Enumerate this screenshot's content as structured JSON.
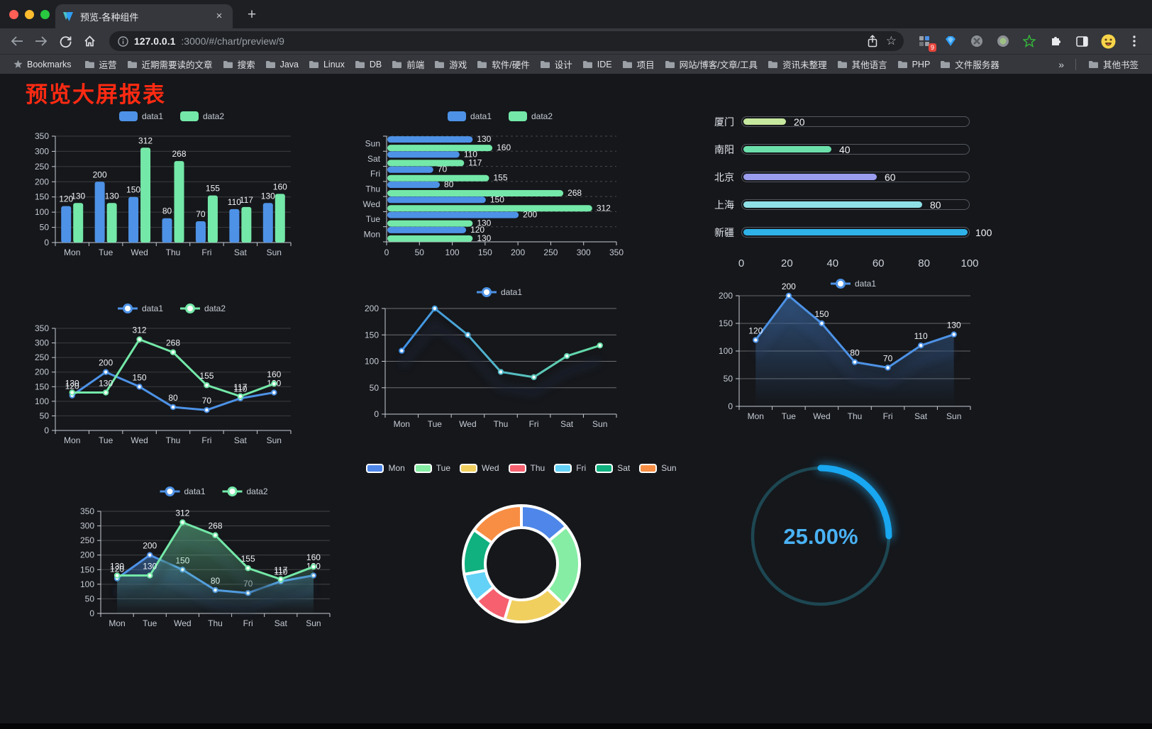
{
  "browser": {
    "tab_title": "预览-各种组件",
    "url_host": "127.0.0.1",
    "url_path": ":3000/#/chart/preview/9",
    "bookmarks_label": "Bookmarks",
    "bookmarks": [
      "运营",
      "近期需要读的文章",
      "搜索",
      "Java",
      "Linux",
      "DB",
      "前端",
      "游戏",
      "软件/硬件",
      "设计",
      "IDE",
      "项目",
      "网站/博客/文章/工具",
      "资讯未整理",
      "其他语言",
      "PHP",
      "文件服务器"
    ],
    "overflow_chevron": "»",
    "other_bookmarks": "其他书签",
    "extension_badge": "9"
  },
  "page": {
    "title": "预览大屏报表",
    "title_color": "#ff2a12"
  },
  "chart_data": [
    {
      "id": "bar-grouped",
      "type": "bar",
      "categories": [
        "Mon",
        "Tue",
        "Wed",
        "Thu",
        "Fri",
        "Sat",
        "Sun"
      ],
      "series": [
        {
          "name": "data1",
          "color": "#4d92e6",
          "values": [
            120,
            200,
            150,
            80,
            70,
            110,
            130
          ],
          "labels": true
        },
        {
          "name": "data2",
          "color": "#74e8a8",
          "values": [
            130,
            130,
            312,
            268,
            155,
            117,
            160
          ],
          "labels": true
        }
      ],
      "ylim": [
        0,
        350
      ],
      "ytick": 50,
      "grid_alpha": 0.16,
      "legend_position": "top"
    },
    {
      "id": "hbar-grouped",
      "type": "hbar",
      "categories": [
        "Mon",
        "Tue",
        "Wed",
        "Thu",
        "Fri",
        "Sat",
        "Sun"
      ],
      "series": [
        {
          "name": "data1",
          "color": "#4d92e6",
          "values": [
            120,
            200,
            150,
            80,
            70,
            110,
            130
          ],
          "labels": true
        },
        {
          "name": "data2",
          "color": "#74e8a8",
          "values": [
            130,
            130,
            312,
            268,
            155,
            117,
            160
          ],
          "labels": true
        }
      ],
      "xlim": [
        0,
        350
      ],
      "xtick": 50,
      "legend_position": "top"
    },
    {
      "id": "progress-cities",
      "type": "progress",
      "items": [
        {
          "label": "厦门",
          "value": 20,
          "color": "#c6e89e"
        },
        {
          "label": "南阳",
          "value": 40,
          "color": "#6ce0ab"
        },
        {
          "label": "北京",
          "value": 60,
          "color": "#9a9ced"
        },
        {
          "label": "上海",
          "value": 80,
          "color": "#8fdfe6"
        },
        {
          "label": "新疆",
          "value": 100,
          "color": "#2fb2e8"
        }
      ],
      "max": 100,
      "axis_ticks": [
        0,
        20,
        40,
        60,
        80,
        100
      ]
    },
    {
      "id": "line-two-series",
      "type": "line",
      "categories": [
        "Mon",
        "Tue",
        "Wed",
        "Thu",
        "Fri",
        "Sat",
        "Sun"
      ],
      "series": [
        {
          "name": "data1",
          "color": "#4d92e6",
          "values": [
            120,
            200,
            150,
            80,
            70,
            110,
            130
          ],
          "labels": true
        },
        {
          "name": "data2",
          "color": "#74e8a8",
          "values": [
            130,
            130,
            312,
            268,
            155,
            117,
            160
          ],
          "labels": true
        }
      ],
      "ylim": [
        0,
        350
      ],
      "ytick": 50,
      "grid_alpha": 0.16,
      "legend_position": "top"
    },
    {
      "id": "line-gradient",
      "type": "line",
      "categories": [
        "Mon",
        "Tue",
        "Wed",
        "Thu",
        "Fri",
        "Sat",
        "Sun"
      ],
      "series": [
        {
          "name": "data1",
          "color": "#4d92e6",
          "values": [
            120,
            200,
            150,
            80,
            70,
            110,
            130
          ],
          "labels": false
        }
      ],
      "gradient": [
        "#3f8fe8",
        "#67e0a5"
      ],
      "shadow": true,
      "ylim": [
        0,
        200
      ],
      "ytick": 50,
      "grid_alpha": 0.38,
      "legend_position": "top"
    },
    {
      "id": "area-single",
      "type": "line",
      "categories": [
        "Mon",
        "Tue",
        "Wed",
        "Thu",
        "Fri",
        "Sat",
        "Sun"
      ],
      "series": [
        {
          "name": "data1",
          "color": "#4d92e6",
          "values": [
            120,
            200,
            150,
            80,
            70,
            110,
            130
          ],
          "labels": true,
          "area": true
        }
      ],
      "shadow": true,
      "ylim": [
        0,
        200
      ],
      "ytick": 50,
      "grid_alpha": 0.34,
      "legend_position": "top"
    },
    {
      "id": "area-two-series",
      "type": "line",
      "categories": [
        "Mon",
        "Tue",
        "Wed",
        "Thu",
        "Fri",
        "Sat",
        "Sun"
      ],
      "series": [
        {
          "name": "data1",
          "color": "#4d92e6",
          "values": [
            120,
            200,
            150,
            80,
            70,
            110,
            130
          ],
          "labels": true,
          "area": true
        },
        {
          "name": "data2",
          "color": "#74e8a8",
          "values": [
            130,
            130,
            312,
            268,
            155,
            117,
            160
          ],
          "labels": true,
          "area": true
        }
      ],
      "shadow": true,
      "ylim": [
        0,
        350
      ],
      "ytick": 50,
      "grid_alpha": 0.2,
      "legend_position": "top"
    },
    {
      "id": "donut-days",
      "type": "pie",
      "labels": [
        "Mon",
        "Tue",
        "Wed",
        "Thu",
        "Fri",
        "Sat",
        "Sun"
      ],
      "values": [
        120,
        200,
        150,
        80,
        70,
        110,
        130
      ],
      "colors": [
        "#4e87e9",
        "#85eda4",
        "#f0cf5e",
        "#f6606f",
        "#64d2f6",
        "#10b07f",
        "#f78e44"
      ],
      "border_color": "#ffffff",
      "legend_position": "top"
    },
    {
      "id": "gauge-percent",
      "type": "gauge",
      "percent": 25,
      "value_label": "25.00%",
      "color": "#18a7f0",
      "track_color": "#1d4752",
      "text_color": "#4ab2f4"
    }
  ]
}
